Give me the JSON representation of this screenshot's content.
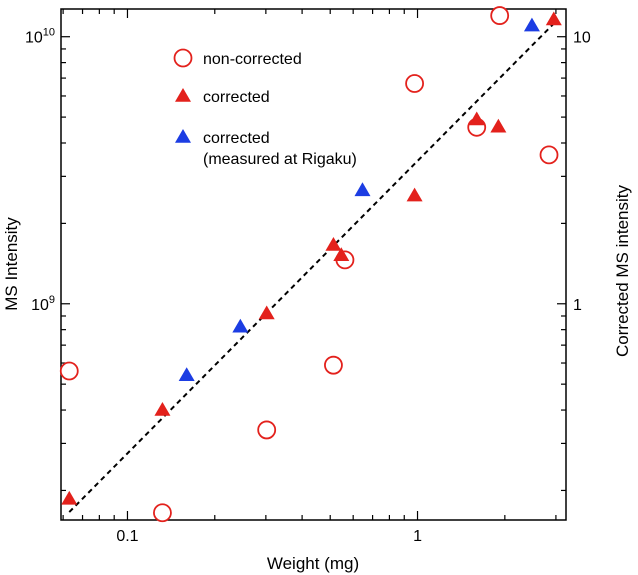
{
  "chart_data": {
    "type": "scatter",
    "title": "",
    "xlabel": "Weight (mg)",
    "ylabel": "MS Intensity",
    "y2label": "Corrected MS intensity",
    "x_scale": "log",
    "y_scale": "log",
    "y2_scale": "log",
    "xlim": [
      0.059,
      3.25
    ],
    "ylim": [
      155000000,
      12700000000
    ],
    "y2lim": [
      0.155,
      12.7
    ],
    "grid": false,
    "legend_position": "top-left",
    "x_ticks": [
      {
        "value": 0.1,
        "label": "0.1"
      },
      {
        "value": 1,
        "label": "1"
      }
    ],
    "y_ticks": [
      {
        "value": 1000000000,
        "base": "10",
        "exp": "9"
      },
      {
        "value": 10000000000,
        "base": "10",
        "exp": "10"
      }
    ],
    "y2_ticks": [
      {
        "value": 1,
        "label": "1"
      },
      {
        "value": 10,
        "label": "10"
      }
    ],
    "series": [
      {
        "name": "non-corrected",
        "axis": "left",
        "marker": "open-circle",
        "color": "#e3211c",
        "points": [
          {
            "x": 0.063,
            "y": 560000000
          },
          {
            "x": 0.132,
            "y": 165000000
          },
          {
            "x": 0.302,
            "y": 337000000
          },
          {
            "x": 0.513,
            "y": 589000000
          },
          {
            "x": 0.562,
            "y": 1460000000
          },
          {
            "x": 0.977,
            "y": 6680000000
          },
          {
            "x": 1.6,
            "y": 4580000000
          },
          {
            "x": 1.92,
            "y": 12000000000
          },
          {
            "x": 2.84,
            "y": 3610000000
          }
        ]
      },
      {
        "name": "corrected",
        "axis": "right",
        "marker": "filled-triangle",
        "color": "#e3211c",
        "points": [
          {
            "x": 0.063,
            "y": 0.186
          },
          {
            "x": 0.132,
            "y": 0.4
          },
          {
            "x": 0.302,
            "y": 0.92
          },
          {
            "x": 0.513,
            "y": 1.66
          },
          {
            "x": 0.546,
            "y": 1.52
          },
          {
            "x": 0.977,
            "y": 2.54
          },
          {
            "x": 1.6,
            "y": 4.9
          },
          {
            "x": 1.9,
            "y": 4.6
          },
          {
            "x": 2.95,
            "y": 11.6
          }
        ]
      },
      {
        "name": "corrected\n(measured at Rigaku)",
        "axis": "right",
        "marker": "filled-triangle",
        "color": "#1c3de3",
        "points": [
          {
            "x": 0.16,
            "y": 0.54
          },
          {
            "x": 0.245,
            "y": 0.82
          },
          {
            "x": 0.646,
            "y": 2.66
          },
          {
            "x": 2.48,
            "y": 11.0
          }
        ]
      }
    ],
    "fit_line": {
      "style": "dashed",
      "color": "#000000",
      "axis": "left",
      "from": {
        "x": 0.063,
        "y": 166000000
      },
      "to": {
        "x": 2.95,
        "y": 11200000000
      }
    }
  }
}
